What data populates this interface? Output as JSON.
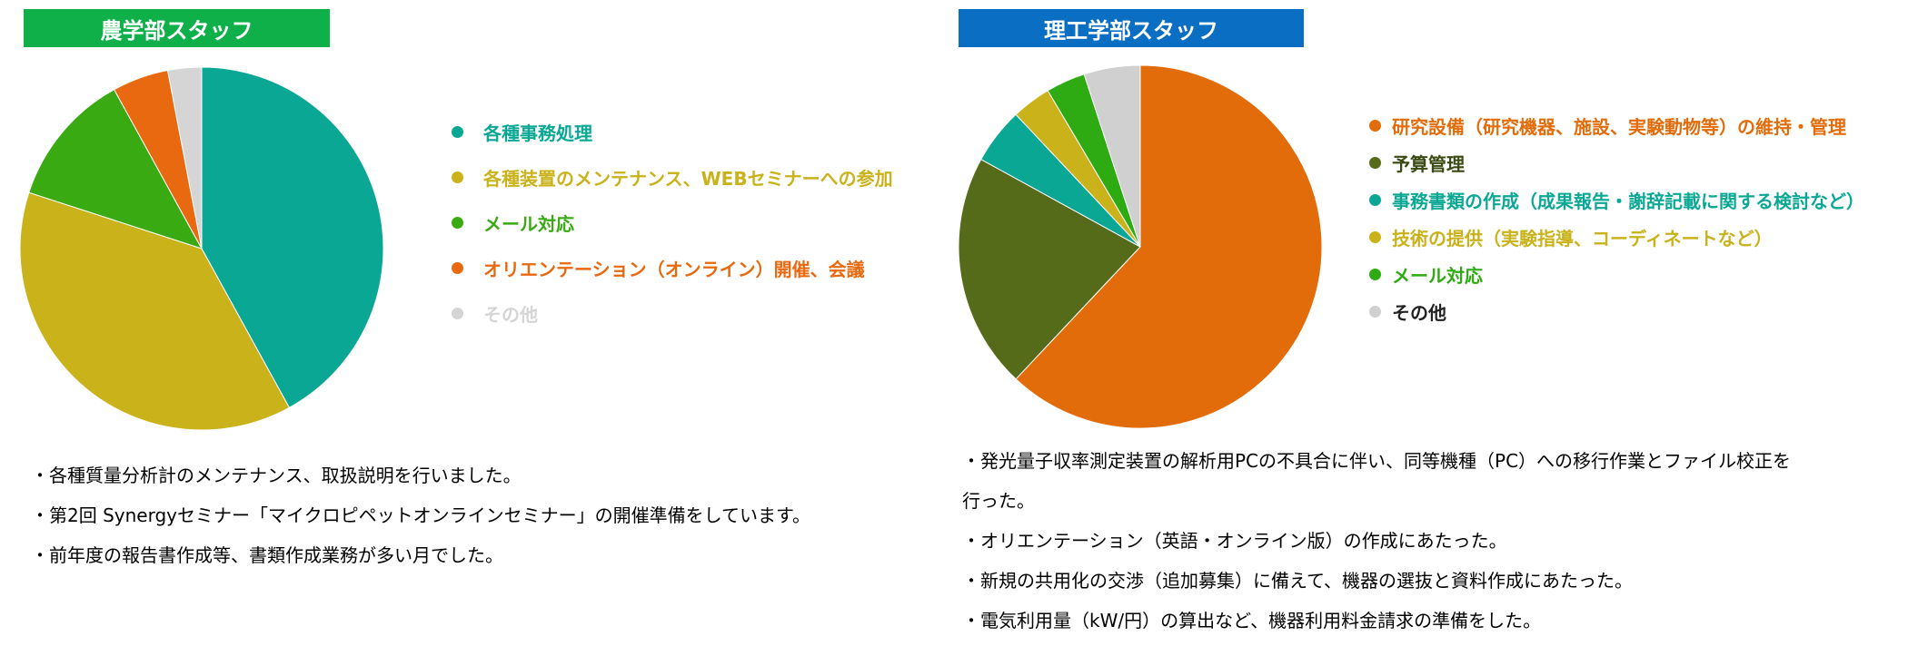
{
  "chart_data": [
    {
      "type": "pie",
      "title": "農学部スタッフ",
      "title_color": "#0fb04a",
      "categories": [
        "各種事務処理",
        "各種装置のメンテナンス、WEBセミナーへの参加",
        "メール対応",
        "オリエンテーション（オンライン）開催、会議",
        "その他"
      ],
      "values": [
        42,
        38,
        12,
        5,
        3
      ],
      "colors": [
        "#0aa894",
        "#c9b21a",
        "#3aaa12",
        "#e8690f",
        "#d5d5d5"
      ],
      "start": "top",
      "direction": "clockwise",
      "notes": [
        "・各種質量分析計のメンテナンス、取扱説明を行いました。",
        "・第2回 Synergyセミナー「マイクロピペットオンラインセミナー」の開催準備をしています。",
        "・前年度の報告書作成等、書類作成業務が多い月でした。"
      ]
    },
    {
      "type": "pie",
      "title": "理工学部スタッフ",
      "title_color": "#0a6fc2",
      "categories": [
        "研究設備（研究機器、施設、実験動物等）の維持・管理",
        "予算管理",
        "事務書類の作成（成果報告・謝辞記載に関する検討など）",
        "技術の提供（実験指導、コーディネートなど）",
        "メール対応",
        "その他"
      ],
      "values": [
        62,
        21,
        5,
        3.5,
        3.5,
        5
      ],
      "colors": [
        "#e36c0a",
        "#566b1a",
        "#0aa894",
        "#c9b21a",
        "#2eaa12",
        "#d0d0d0"
      ],
      "label_colors": [
        "#e36c0a",
        "#3a4a12",
        "#0aa894",
        "#c9b21a",
        "#2eaa12",
        "#222222"
      ],
      "start": "top",
      "direction": "clockwise",
      "notes": [
        "・発光量子収率測定装置の解析用PCの不具合に伴い、同等機種（PC）への移行作業とファイル校正を",
        "行った。",
        "・オリエンテーション（英語・オンライン版）の作成にあたった。",
        "・新規の共用化の交渉（追加募集）に備えて、機器の選抜と資料作成にあたった。",
        "・電気利用量（kW/円）の算出など、機器利用料金請求の準備をした。"
      ]
    }
  ]
}
